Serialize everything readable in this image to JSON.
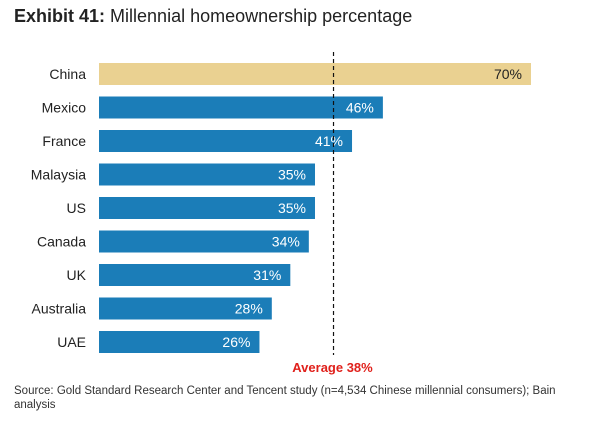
{
  "title": {
    "exhibit_label": "Exhibit 41:",
    "text": "Millennial homeownership percentage"
  },
  "source": "Source: Gold Standard Research Center and Tencent study (n=4,534 Chinese millennial consumers); Bain analysis",
  "chart_data": {
    "type": "bar",
    "orientation": "horizontal",
    "title": "Millennial homeownership percentage",
    "categories": [
      "China",
      "Mexico",
      "France",
      "Malaysia",
      "US",
      "Canada",
      "UK",
      "Australia",
      "UAE"
    ],
    "values": [
      70,
      46,
      41,
      35,
      35,
      34,
      31,
      28,
      26
    ],
    "value_labels": [
      "70%",
      "46%",
      "41%",
      "35%",
      "35%",
      "34%",
      "31%",
      "28%",
      "26%"
    ],
    "highlight_category": "China",
    "reference_line": {
      "value": 38,
      "label": "Average 38%"
    },
    "xlim": [
      0,
      70
    ],
    "grid": false,
    "legend": "none",
    "colors": {
      "bar": "#1B7DB8",
      "highlight_bar": "#EAD191",
      "reference_label": "#E0201B",
      "label_on_bar": "#ffffff",
      "label_on_highlight": "#222222"
    }
  }
}
